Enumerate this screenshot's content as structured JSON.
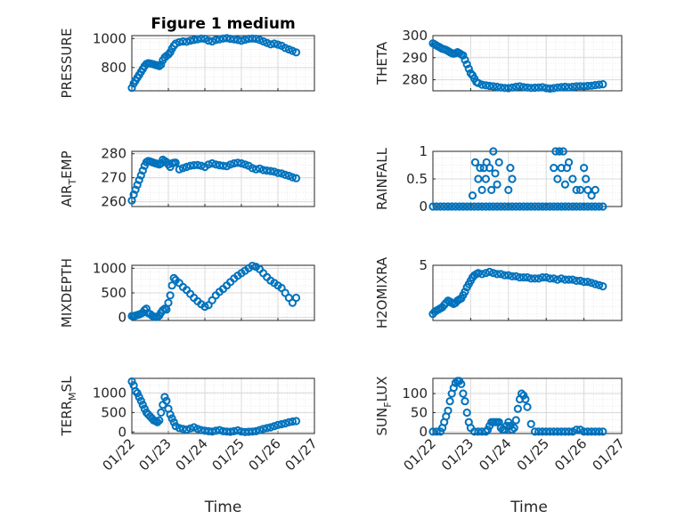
{
  "figure": {
    "title": "Figure 1 medium",
    "marker_color": "#0072BD",
    "x_tick_labels": [
      "01/22",
      "01/23",
      "01/24",
      "01/25",
      "01/26",
      "01/27"
    ],
    "x_axis_label": "Time"
  },
  "chart_data": [
    {
      "type": "scatter",
      "title": "Figure 1 medium",
      "ylabel": "PRESSURE",
      "xlabel": "",
      "xlim": [
        0,
        5
      ],
      "ylim": [
        640,
        1020
      ],
      "yticks": [
        800,
        1000
      ],
      "grid": true,
      "x": [
        0,
        0.05,
        0.1,
        0.15,
        0.2,
        0.25,
        0.3,
        0.35,
        0.4,
        0.45,
        0.5,
        0.55,
        0.6,
        0.65,
        0.7,
        0.75,
        0.8,
        0.85,
        0.9,
        0.95,
        1,
        1.05,
        1.1,
        1.15,
        1.2,
        1.3,
        1.4,
        1.5,
        1.6,
        1.7,
        1.8,
        1.9,
        2,
        2.1,
        2.2,
        2.3,
        2.4,
        2.5,
        2.6,
        2.7,
        2.8,
        2.9,
        3,
        3.1,
        3.2,
        3.3,
        3.4,
        3.5,
        3.6,
        3.7,
        3.8,
        3.9,
        4,
        4.1,
        4.2,
        4.3,
        4.4,
        4.5
      ],
      "y": [
        660,
        690,
        710,
        730,
        750,
        770,
        790,
        810,
        825,
        830,
        828,
        825,
        822,
        818,
        815,
        810,
        820,
        850,
        870,
        880,
        890,
        905,
        930,
        950,
        965,
        975,
        980,
        978,
        985,
        990,
        995,
        1000,
        998,
        985,
        980,
        990,
        995,
        1000,
        1002,
        998,
        995,
        990,
        985,
        992,
        998,
        1000,
        998,
        990,
        980,
        970,
        960,
        965,
        958,
        950,
        935,
        925,
        915,
        905
      ]
    },
    {
      "type": "scatter",
      "ylabel": "THETA",
      "xlabel": "",
      "xlim": [
        0,
        5
      ],
      "ylim": [
        275,
        300
      ],
      "yticks": [
        280,
        290,
        300
      ],
      "grid": true,
      "x": [
        0,
        0.05,
        0.1,
        0.15,
        0.2,
        0.25,
        0.3,
        0.35,
        0.4,
        0.45,
        0.5,
        0.55,
        0.6,
        0.65,
        0.7,
        0.75,
        0.8,
        0.85,
        0.9,
        0.95,
        1,
        1.05,
        1.1,
        1.15,
        1.2,
        1.3,
        1.4,
        1.5,
        1.6,
        1.7,
        1.8,
        1.9,
        2,
        2.1,
        2.2,
        2.3,
        2.4,
        2.5,
        2.6,
        2.7,
        2.8,
        2.9,
        3,
        3.1,
        3.2,
        3.3,
        3.4,
        3.5,
        3.6,
        3.7,
        3.8,
        3.9,
        4,
        4.1,
        4.2,
        4.3,
        4.4,
        4.5
      ],
      "y": [
        296.5,
        296,
        295.5,
        295,
        294.5,
        294,
        293.8,
        293.5,
        293,
        292.5,
        292,
        291.8,
        292,
        292.5,
        292,
        291.5,
        291,
        289,
        287,
        285,
        283,
        282,
        280.5,
        279,
        278.5,
        277.8,
        277.5,
        277.2,
        277,
        276.8,
        276.5,
        276.3,
        276.2,
        276.5,
        276.8,
        277,
        276.7,
        276.5,
        276.3,
        276.4,
        276.5,
        276.6,
        276.2,
        276,
        276.2,
        276.5,
        276.7,
        276.8,
        276.6,
        276.8,
        277,
        277.1,
        277,
        277.2,
        277.3,
        277.6,
        277.8,
        278
      ]
    },
    {
      "type": "scatter",
      "ylabel": "AIR_TEMP",
      "xlabel": "",
      "xlim": [
        0,
        5
      ],
      "ylim": [
        258,
        281
      ],
      "yticks": [
        260,
        270,
        280
      ],
      "grid": true,
      "x": [
        0,
        0.05,
        0.1,
        0.15,
        0.2,
        0.25,
        0.3,
        0.35,
        0.4,
        0.45,
        0.5,
        0.55,
        0.6,
        0.65,
        0.7,
        0.75,
        0.8,
        0.85,
        0.9,
        0.95,
        1,
        1.05,
        1.1,
        1.15,
        1.2,
        1.3,
        1.4,
        1.5,
        1.6,
        1.7,
        1.8,
        1.9,
        2,
        2.1,
        2.2,
        2.3,
        2.4,
        2.5,
        2.6,
        2.7,
        2.8,
        2.9,
        3,
        3.1,
        3.2,
        3.3,
        3.4,
        3.5,
        3.6,
        3.7,
        3.8,
        3.9,
        4,
        4.1,
        4.2,
        4.3,
        4.4,
        4.5
      ],
      "y": [
        260.5,
        263,
        265,
        267,
        269,
        271,
        273,
        275,
        276.5,
        277,
        276.8,
        276.5,
        276.2,
        276,
        275.8,
        275.5,
        276,
        277.5,
        277,
        276.5,
        275.5,
        274.5,
        276,
        276.2,
        276.3,
        273.5,
        274,
        274.5,
        275,
        275.2,
        275.3,
        275,
        274.5,
        275.5,
        276,
        275.5,
        275.2,
        275,
        274.8,
        275.5,
        276,
        276.2,
        276,
        275.5,
        275,
        274,
        273.5,
        273.8,
        273.2,
        273,
        272.8,
        272.5,
        272,
        271.8,
        271.2,
        270.8,
        270.2,
        269.8
      ]
    },
    {
      "type": "scatter",
      "ylabel": "RAINFALL",
      "xlabel": "",
      "xlim": [
        0,
        5
      ],
      "ylim": [
        0,
        1
      ],
      "yticks": [
        0,
        0.5,
        1
      ],
      "grid": true,
      "x": [
        0,
        0.1,
        0.2,
        0.3,
        0.4,
        0.5,
        0.6,
        0.7,
        0.8,
        0.9,
        1,
        1.1,
        1.2,
        1.3,
        1.4,
        1.5,
        1.6,
        1.7,
        1.8,
        1.9,
        2,
        2.1,
        2.2,
        2.3,
        2.4,
        2.5,
        2.6,
        2.7,
        2.8,
        2.9,
        3,
        3.1,
        3.2,
        3.3,
        3.4,
        3.5,
        3.6,
        3.7,
        3.8,
        3.9,
        4,
        4.1,
        4.2,
        4.3,
        4.4,
        4.5,
        1.05,
        1.12,
        1.2,
        1.25,
        1.3,
        1.35,
        1.4,
        1.42,
        1.5,
        1.55,
        1.6,
        1.65,
        1.7,
        1.75,
        2.0,
        2.05,
        2.1,
        3.2,
        3.25,
        3.3,
        3.35,
        3.4,
        3.45,
        3.5,
        3.55,
        3.6,
        3.7,
        3.8,
        3.9,
        4.0,
        4.05,
        4.1,
        4.2,
        4.3
      ],
      "y": [
        0,
        0,
        0,
        0,
        0,
        0,
        0,
        0,
        0,
        0,
        0,
        0,
        0,
        0,
        0,
        0,
        0,
        0,
        0,
        0,
        0,
        0,
        0,
        0,
        0,
        0,
        0,
        0,
        0,
        0,
        0,
        0,
        0,
        0,
        0,
        0,
        0,
        0,
        0,
        0,
        0,
        0,
        0,
        0,
        0,
        0,
        0.2,
        0.8,
        0.5,
        0.7,
        0.3,
        0.7,
        0.5,
        0.8,
        0.7,
        0.3,
        1.0,
        0.6,
        0.4,
        0.8,
        0.3,
        0.7,
        0.5,
        0.7,
        1.0,
        0.5,
        1.0,
        0.7,
        1.0,
        0.4,
        0.7,
        0.8,
        0.5,
        0.3,
        0.3,
        0.7,
        0.5,
        0.3,
        0.2,
        0.3
      ]
    },
    {
      "type": "scatter",
      "ylabel": "MIXDEPTH",
      "xlabel": "",
      "xlim": [
        0,
        5
      ],
      "ylim": [
        -60,
        1060
      ],
      "yticks": [
        0,
        500,
        1000
      ],
      "grid": true,
      "x": [
        0,
        0.05,
        0.1,
        0.15,
        0.2,
        0.25,
        0.3,
        0.35,
        0.4,
        0.45,
        0.5,
        0.55,
        0.6,
        0.65,
        0.7,
        0.75,
        0.8,
        0.85,
        0.9,
        0.95,
        1,
        1.05,
        1.1,
        1.15,
        1.2,
        1.3,
        1.4,
        1.5,
        1.6,
        1.7,
        1.8,
        1.9,
        2,
        2.1,
        2.2,
        2.3,
        2.4,
        2.5,
        2.6,
        2.7,
        2.8,
        2.9,
        3,
        3.1,
        3.2,
        3.3,
        3.4,
        3.5,
        3.6,
        3.7,
        3.8,
        3.9,
        4,
        4.1,
        4.2,
        4.3,
        4.4,
        4.5
      ],
      "y": [
        30,
        25,
        40,
        50,
        60,
        80,
        100,
        150,
        180,
        90,
        70,
        40,
        20,
        10,
        20,
        40,
        100,
        150,
        180,
        160,
        300,
        450,
        650,
        800,
        760,
        700,
        620,
        560,
        480,
        400,
        330,
        270,
        220,
        250,
        350,
        450,
        520,
        580,
        650,
        720,
        790,
        850,
        900,
        950,
        1000,
        1050,
        1030,
        980,
        900,
        820,
        750,
        700,
        650,
        600,
        500,
        400,
        300,
        400
      ]
    },
    {
      "type": "scatter",
      "ylabel": "H2OMIXRA",
      "xlabel": "",
      "xlim": [
        0,
        5
      ],
      "ylim": [
        0,
        5
      ],
      "yticks": [
        5
      ],
      "grid": true,
      "x": [
        0,
        0.05,
        0.1,
        0.15,
        0.2,
        0.25,
        0.3,
        0.35,
        0.4,
        0.45,
        0.5,
        0.55,
        0.6,
        0.65,
        0.7,
        0.75,
        0.8,
        0.85,
        0.9,
        0.95,
        1,
        1.05,
        1.1,
        1.15,
        1.2,
        1.3,
        1.4,
        1.5,
        1.6,
        1.7,
        1.8,
        1.9,
        2,
        2.1,
        2.2,
        2.3,
        2.4,
        2.5,
        2.6,
        2.7,
        2.8,
        2.9,
        3,
        3.1,
        3.2,
        3.3,
        3.4,
        3.5,
        3.6,
        3.7,
        3.8,
        3.9,
        4,
        4.1,
        4.2,
        4.3,
        4.4,
        4.5
      ],
      "y": [
        0.6,
        0.8,
        0.9,
        1.0,
        1.1,
        1.2,
        1.4,
        1.6,
        1.8,
        1.7,
        1.6,
        1.5,
        1.6,
        1.8,
        1.9,
        2.0,
        2.3,
        2.6,
        3.0,
        3.3,
        3.6,
        3.9,
        4.1,
        4.2,
        4.3,
        4.2,
        4.3,
        4.4,
        4.3,
        4.2,
        4.2,
        4.1,
        4.1,
        4.0,
        4.0,
        3.9,
        3.9,
        3.9,
        3.8,
        3.8,
        3.8,
        3.9,
        3.9,
        3.8,
        3.8,
        3.7,
        3.8,
        3.7,
        3.7,
        3.7,
        3.6,
        3.6,
        3.5,
        3.5,
        3.4,
        3.3,
        3.2,
        3.1
      ]
    },
    {
      "type": "scatter",
      "ylabel": "TERR_MSL",
      "xlabel": "Time",
      "xlim": [
        0,
        5
      ],
      "ylim": [
        -40,
        1380
      ],
      "yticks": [
        0,
        500,
        1000
      ],
      "xticklabels": [
        "01/22",
        "01/23",
        "01/24",
        "01/25",
        "01/26",
        "01/27"
      ],
      "grid": true,
      "x": [
        0,
        0.05,
        0.1,
        0.15,
        0.2,
        0.25,
        0.3,
        0.35,
        0.4,
        0.45,
        0.5,
        0.55,
        0.6,
        0.65,
        0.7,
        0.75,
        0.8,
        0.85,
        0.9,
        0.95,
        1,
        1.05,
        1.1,
        1.15,
        1.2,
        1.3,
        1.4,
        1.5,
        1.6,
        1.7,
        1.8,
        1.9,
        2,
        2.1,
        2.2,
        2.3,
        2.4,
        2.5,
        2.6,
        2.7,
        2.8,
        2.9,
        3,
        3.1,
        3.2,
        3.3,
        3.4,
        3.5,
        3.6,
        3.7,
        3.8,
        3.9,
        4,
        4.1,
        4.2,
        4.3,
        4.4,
        4.5
      ],
      "y": [
        1300,
        1200,
        1050,
        1000,
        900,
        800,
        700,
        600,
        500,
        450,
        400,
        350,
        300,
        280,
        250,
        300,
        500,
        700,
        900,
        800,
        600,
        450,
        350,
        250,
        150,
        100,
        80,
        60,
        90,
        120,
        80,
        50,
        30,
        20,
        10,
        30,
        50,
        20,
        10,
        5,
        20,
        40,
        10,
        0,
        5,
        10,
        20,
        50,
        80,
        100,
        120,
        150,
        180,
        200,
        220,
        250,
        270,
        280
      ]
    },
    {
      "type": "scatter",
      "ylabel": "SUN_FLUX",
      "xlabel": "Time",
      "xlim": [
        0,
        5
      ],
      "ylim": [
        -5,
        140
      ],
      "yticks": [
        0,
        50,
        100
      ],
      "xticklabels": [
        "01/22",
        "01/23",
        "01/24",
        "01/25",
        "01/26",
        "01/27"
      ],
      "grid": true,
      "x": [
        0,
        0.1,
        0.2,
        0.25,
        0.3,
        0.35,
        0.4,
        0.45,
        0.5,
        0.55,
        0.6,
        0.65,
        0.7,
        0.75,
        0.8,
        0.85,
        0.9,
        0.95,
        1.0,
        1.1,
        1.2,
        1.3,
        1.4,
        1.45,
        1.5,
        1.55,
        1.6,
        1.65,
        1.7,
        1.75,
        1.8,
        1.85,
        1.9,
        1.95,
        2.0,
        2.05,
        2.1,
        2.15,
        2.2,
        2.25,
        2.3,
        2.35,
        2.4,
        2.45,
        2.5,
        2.6,
        2.7,
        2.8,
        2.9,
        3.0,
        3.1,
        3.2,
        3.3,
        3.4,
        3.5,
        3.6,
        3.7,
        3.8,
        3.9,
        4.0,
        4.1,
        4.2,
        4.3,
        4.4,
        4.5
      ],
      "y": [
        0,
        0,
        0,
        10,
        25,
        40,
        55,
        80,
        100,
        115,
        128,
        133,
        133,
        125,
        100,
        80,
        50,
        25,
        10,
        0,
        0,
        0,
        0,
        5,
        15,
        25,
        25,
        25,
        25,
        25,
        10,
        5,
        5,
        15,
        25,
        15,
        5,
        10,
        30,
        60,
        85,
        100,
        95,
        85,
        65,
        20,
        0,
        0,
        0,
        0,
        0,
        0,
        0,
        0,
        0,
        0,
        0,
        5,
        5,
        0,
        0,
        0,
        0,
        0,
        0
      ]
    }
  ]
}
